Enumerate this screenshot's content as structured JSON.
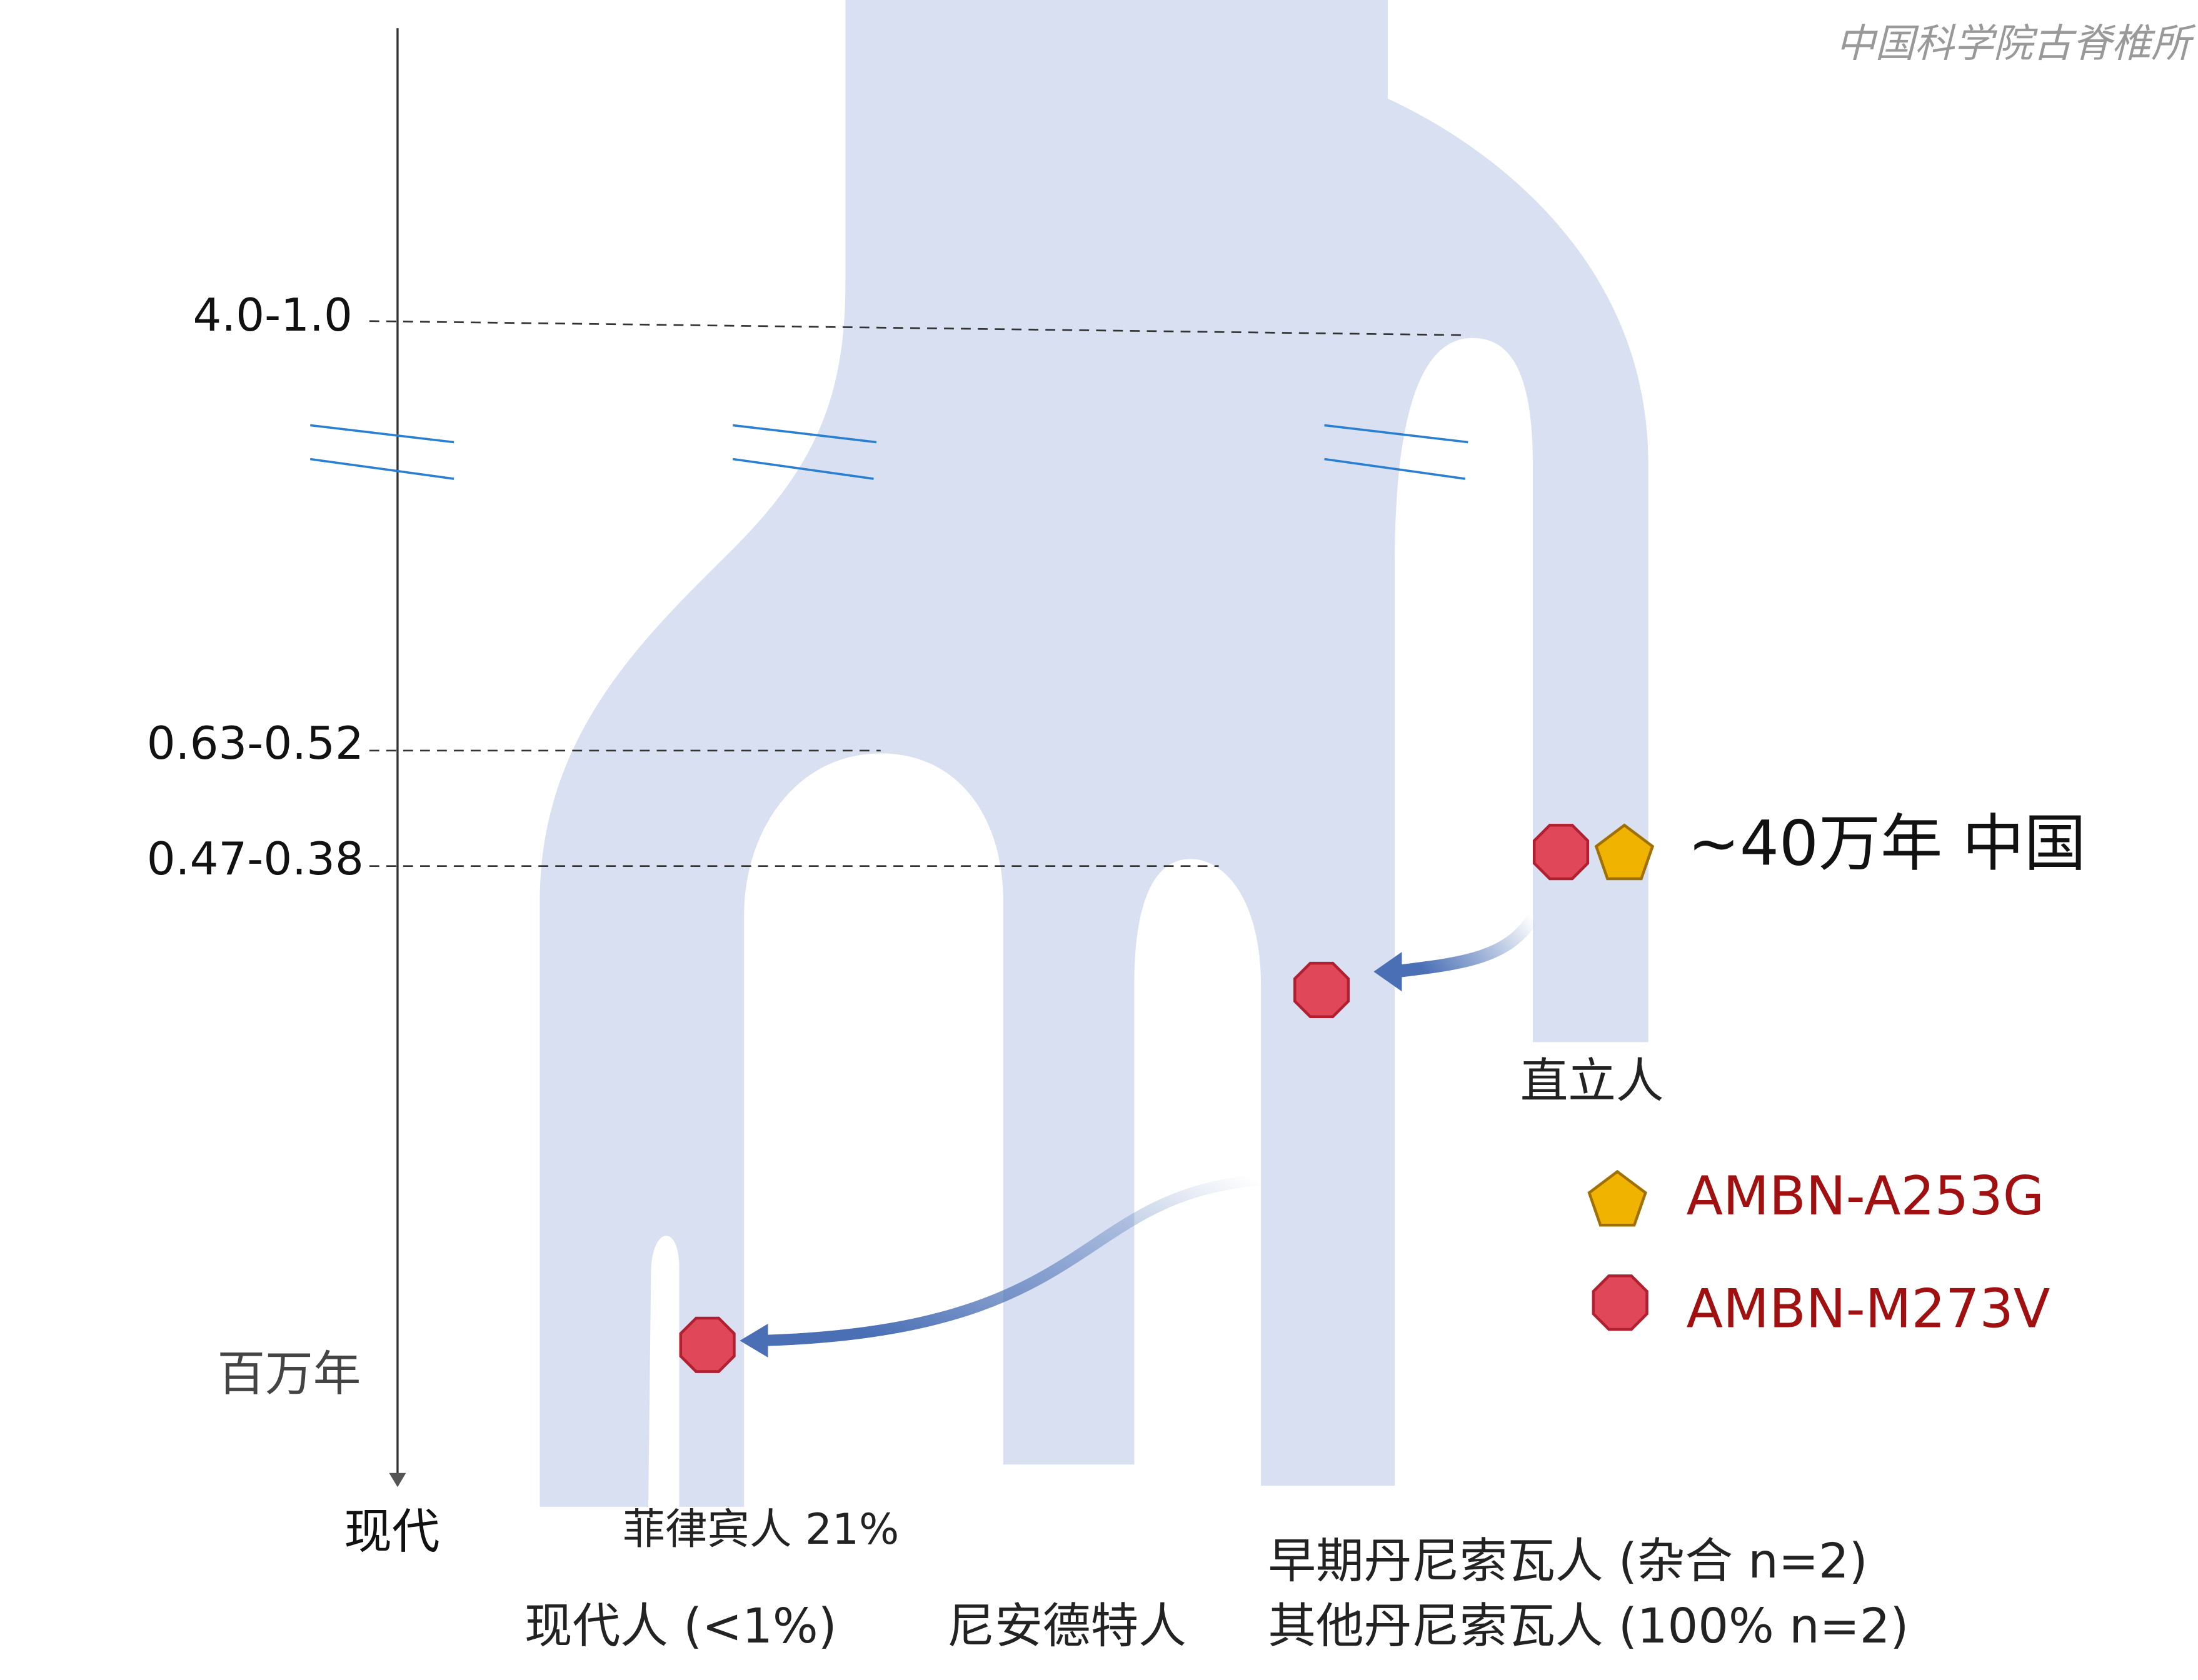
{
  "watermark": "中国科学院古脊椎所",
  "time_axis": {
    "ticks": [
      "4.0-1.0",
      "0.63-0.52",
      "0.47-0.38"
    ],
    "unit": "百万年",
    "end_label": "现代"
  },
  "annotation": "~40万年 中国",
  "lineages": {
    "erectus": "直立人",
    "philippine": "菲律宾人 21%",
    "modern": "现代人 (<1%)",
    "neanderthal": "尼安德特人",
    "early_denisovan": "早期丹尼索瓦人 (杂合   n=2)",
    "other_denisovan": "其他丹尼索瓦人 (100% n=2)"
  },
  "legend": [
    {
      "label": "AMBN-A253G"
    },
    {
      "label": "AMBN-M273V"
    }
  ]
}
